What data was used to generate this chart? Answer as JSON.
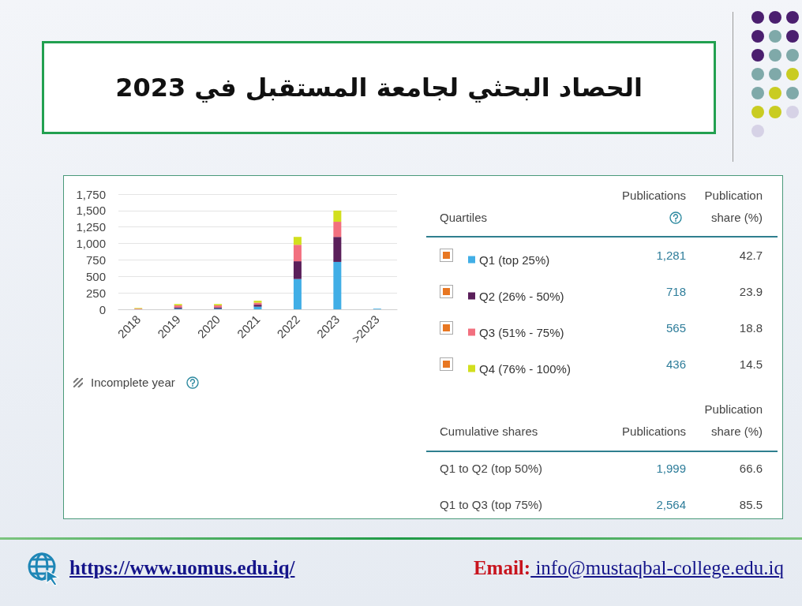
{
  "chart_data": {
    "type": "bar",
    "title": "الحصاد البحثي لجامعة المستقبل في 2023",
    "categories": [
      "2018",
      "2019",
      "2020",
      "2021",
      "2022",
      "2023",
      ">2023"
    ],
    "series": [
      {
        "name": "Q1 (top 25%)",
        "color": "#41aee6",
        "values": [
          null,
          10,
          10,
          40,
          460,
          720,
          10
        ]
      },
      {
        "name": "Q2 (26% - 50%)",
        "color": "#5a1f5a",
        "values": [
          null,
          20,
          20,
          30,
          270,
          380,
          null
        ]
      },
      {
        "name": "Q3 (51% - 75%)",
        "color": "#f2707f",
        "values": [
          10,
          30,
          30,
          30,
          250,
          230,
          null
        ]
      },
      {
        "name": "Q4 (76% - 100%)",
        "color": "#d2df1e",
        "values": [
          10,
          20,
          20,
          30,
          120,
          170,
          null
        ]
      }
    ],
    "stacked": true,
    "ylim": [
      0,
      1750
    ],
    "yticks": [
      0,
      250,
      500,
      750,
      {
        "value": 1000,
        "label": "1,000"
      },
      {
        "value": 1250,
        "label": "1,250"
      },
      {
        "value": 1500,
        "label": "1,500"
      },
      {
        "value": 1750,
        "label": "1,750"
      }
    ],
    "grid": "y",
    "legend": "right",
    "annotations": [
      "Incomplete year",
      "Quartiles",
      "Publications",
      "Publication share (%)",
      "1,281",
      "42.7",
      "718",
      "23.9",
      "565",
      "18.8",
      "436",
      "14.5",
      "Cumulative shares",
      "Publications",
      "Publication share (%)",
      "Q1 to Q2 (top 50%)",
      "1,999",
      "66.6",
      "Q1 to Q3 (top 75%)",
      "2,564",
      "85.5",
      "https://www.uomus.edu.iq/",
      "Email: info@mustaqbal-college.edu.iq"
    ]
  }
}
